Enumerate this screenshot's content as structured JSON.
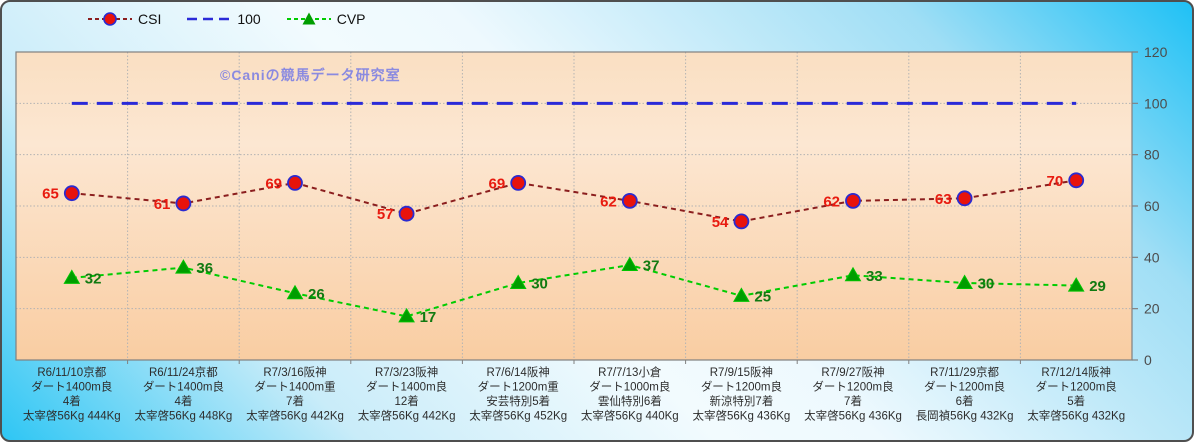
{
  "legend": {
    "items": [
      {
        "label": "CSI",
        "marker": "circle",
        "line_color": "#8b1e1e",
        "marker_fill": "#e8130c",
        "marker_stroke": "#2b2bd0",
        "dash": "4 3"
      },
      {
        "label": "100",
        "marker": "dash",
        "line_color": "#2a2ad8",
        "dash": "10 6"
      },
      {
        "label": "CVP",
        "marker": "triangle",
        "line_color": "#00cc00",
        "marker_fill": "#009d00",
        "dash": "4 3"
      }
    ]
  },
  "watermark": "©Caniの競馬データ研究室",
  "chart_data": {
    "type": "line",
    "legend_position": "top",
    "grid": true,
    "ylim": [
      0,
      120
    ],
    "yticks": [
      0,
      20,
      40,
      60,
      80,
      100,
      120
    ],
    "y_axis_side": "right",
    "categories": [
      [
        "R6/11/10京都",
        "ダート1400m良",
        "4着",
        "太宰啓56Kg 444Kg"
      ],
      [
        "R6/11/24京都",
        "ダート1400m良",
        "4着",
        "太宰啓56Kg 448Kg"
      ],
      [
        "R7/3/16阪神",
        "ダート1400m重",
        "7着",
        "太宰啓56Kg 442Kg"
      ],
      [
        "R7/3/23阪神",
        "ダート1400m良",
        "12着",
        "太宰啓56Kg 442Kg"
      ],
      [
        "R7/6/14阪神",
        "ダート1200m重",
        "安芸特別5着",
        "太宰啓56Kg 452Kg"
      ],
      [
        "R7/7/13小倉",
        "ダート1000m良",
        "雲仙特別6着",
        "太宰啓56Kg 440Kg"
      ],
      [
        "R7/9/15阪神",
        "ダート1200m良",
        "新涼特別7着",
        "太宰啓56Kg 436Kg"
      ],
      [
        "R7/9/27阪神",
        "ダート1200m良",
        "7着",
        "太宰啓56Kg 436Kg"
      ],
      [
        "R7/11/29京都",
        "ダート1200m良",
        "6着",
        "長岡禎56Kg 432Kg"
      ],
      [
        "R7/12/14阪神",
        "ダート1200m良",
        "5着",
        "太宰啓56Kg 432Kg"
      ]
    ],
    "series": [
      {
        "name": "100",
        "values": [
          100,
          100,
          100,
          100,
          100,
          100,
          100,
          100,
          100,
          100
        ],
        "line_color": "#2a2ad8",
        "line_width": 3,
        "dash": "16 9",
        "marker": "none",
        "show_labels": false
      },
      {
        "name": "CVP",
        "values": [
          32,
          36,
          26,
          17,
          30,
          37,
          25,
          33,
          30,
          29
        ],
        "line_color": "#00cc00",
        "line_width": 2,
        "dash": "5 4",
        "marker": "triangle",
        "marker_fill": "#009d00",
        "marker_stroke": "#00c400",
        "label_color": "#117a11",
        "label_side": "right",
        "show_labels": true
      },
      {
        "name": "CSI",
        "values": [
          65,
          61,
          69,
          57,
          69,
          62,
          54,
          62,
          63,
          70
        ],
        "line_color": "#8b1e1e",
        "line_width": 2,
        "dash": "5 4",
        "marker": "circle",
        "marker_fill": "#e8130c",
        "marker_stroke": "#2b2bd0",
        "label_color": "#e81b10",
        "label_side": "left",
        "show_labels": true
      }
    ]
  },
  "colors": {
    "plot_bg_top": "#fadfc2",
    "plot_bg_mid": "#fce7d2",
    "plot_bg_bottom": "#f9cda2",
    "outer_accent": "#29c6f6",
    "grid": "#b3b3b3",
    "plot_border": "#808080",
    "axis_text": "#4c4c4c",
    "x_label_text": "#2d2d2d",
    "watermark_color": "#8a8ae0"
  }
}
